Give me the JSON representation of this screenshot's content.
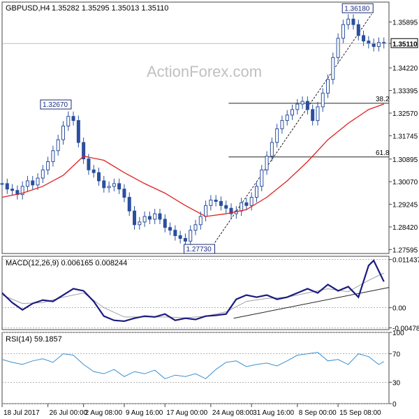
{
  "chart_data": [
    {
      "type": "candlestick",
      "title": "GBPUSD,H4",
      "ohlc": "1.35282 1.35295 1.35013 1.35110",
      "watermark": "ActionForex.com",
      "ylim": [
        1.2745,
        1.3662
      ],
      "y_ticks": [
        "1.35895",
        "1.35110",
        "1.34220",
        "1.33395",
        "1.32570",
        "1.31745",
        "1.30895",
        "1.30070",
        "1.29245",
        "1.28420",
        "1.27595"
      ],
      "y_tick_values": [
        1.35895,
        1.3511,
        1.3422,
        1.33395,
        1.3257,
        1.31745,
        1.30895,
        1.3007,
        1.29245,
        1.2842,
        1.27595
      ],
      "current_price": "1.35110",
      "current_price_value": 1.3511,
      "callouts": [
        {
          "label": "1.32670",
          "value": 1.3267,
          "day": 13.3
        },
        {
          "label": "1.27730",
          "value": 1.2773,
          "day": 41.5
        },
        {
          "label": "1.36180",
          "value": 1.3618,
          "day": 72.6
        }
      ],
      "fibonacci": [
        {
          "label": "38.2",
          "value": 1.3293,
          "from_day": 44.5
        },
        {
          "label": "61.8",
          "value": 1.3097,
          "from_day": 44.5
        }
      ],
      "trend_line": {
        "from": {
          "day": 41.8,
          "value": 1.2785
        },
        "to": {
          "day": 72.6,
          "value": 1.3618
        }
      },
      "series": [
        {
          "name": "price",
          "style": "candles",
          "color": "#2a4f9e",
          "x": [
            0,
            1,
            2,
            3,
            4,
            5,
            6,
            7,
            8,
            9,
            10,
            11,
            12,
            13,
            14,
            15,
            16,
            17,
            18,
            19,
            20,
            21,
            22,
            23,
            24,
            25,
            26,
            27,
            28,
            29,
            30,
            31,
            32,
            33,
            34,
            35,
            36,
            37,
            38,
            39,
            40,
            41,
            42,
            43,
            44,
            45,
            46,
            47,
            48,
            49,
            50,
            51,
            52,
            53,
            54,
            55,
            56,
            57,
            58,
            59,
            60,
            61,
            62,
            63,
            64,
            65,
            66,
            67,
            68,
            69,
            70,
            71,
            72,
            73,
            74,
            75
          ],
          "values": [
            1.3,
            1.298,
            1.2975,
            1.296,
            1.299,
            1.301,
            1.2995,
            1.302,
            1.305,
            1.308,
            1.312,
            1.316,
            1.321,
            1.3245,
            1.323,
            1.315,
            1.309,
            1.305,
            1.304,
            1.301,
            1.2985,
            1.299,
            1.3,
            1.298,
            1.295,
            1.29,
            1.285,
            1.286,
            1.288,
            1.287,
            1.289,
            1.287,
            1.284,
            1.283,
            1.281,
            1.28,
            1.279,
            1.283,
            1.285,
            1.288,
            1.292,
            1.294,
            1.2935,
            1.292,
            1.291,
            1.289,
            1.29,
            1.293,
            1.292,
            1.295,
            1.299,
            1.305,
            1.31,
            1.315,
            1.32,
            1.323,
            1.325,
            1.327,
            1.329,
            1.33,
            1.327,
            1.323,
            1.328,
            1.333,
            1.338,
            1.346,
            1.353,
            1.358,
            1.36,
            1.358,
            1.354,
            1.352,
            1.3511,
            1.35,
            1.3515,
            1.3511
          ]
        },
        {
          "name": "moving-average",
          "style": "line",
          "color": "#e02020",
          "x": [
            0,
            4,
            8,
            12,
            16,
            20,
            24,
            28,
            32,
            36,
            40,
            44,
            48,
            52,
            56,
            60,
            64,
            68,
            72,
            75
          ],
          "values": [
            1.295,
            1.2965,
            1.299,
            1.303,
            1.31,
            1.3085,
            1.304,
            1.3,
            1.2965,
            1.292,
            1.288,
            1.289,
            1.2905,
            1.295,
            1.301,
            1.308,
            1.316,
            1.322,
            1.327,
            1.329
          ]
        }
      ]
    },
    {
      "type": "line",
      "title": "MACD(12,26,9) 0.006165 0.008244",
      "ylim": [
        -0.0052,
        0.0122
      ],
      "y_ticks": [
        "0.011437",
        "0.00",
        "-0.004782"
      ],
      "y_tick_values": [
        0.011437,
        0.0,
        -0.004782
      ],
      "trend_line": {
        "from": {
          "day": 45.5,
          "value": -0.0025
        },
        "to": {
          "day": 76,
          "value": 0.0048
        }
      },
      "series": [
        {
          "name": "macd",
          "color": "#1a1a80",
          "x": [
            0,
            2,
            4,
            6,
            8,
            10,
            12,
            14,
            16,
            18,
            20,
            22,
            24,
            26,
            28,
            30,
            32,
            34,
            36,
            38,
            40,
            42,
            44,
            46,
            48,
            50,
            52,
            54,
            56,
            58,
            60,
            62,
            64,
            66,
            68,
            70,
            72,
            73,
            75
          ],
          "values": [
            0.0035,
            0.0012,
            -0.0005,
            0.001,
            0.0018,
            0.0015,
            0.003,
            0.0045,
            0.004,
            0.0015,
            -0.002,
            -0.003,
            -0.0032,
            -0.0025,
            -0.002,
            -0.0022,
            -0.0015,
            -0.003,
            -0.0025,
            -0.0028,
            -0.002,
            -0.0018,
            -0.0015,
            0.002,
            0.003,
            0.0025,
            0.003,
            0.002,
            0.0025,
            0.0035,
            0.0045,
            0.0035,
            0.0055,
            0.004,
            0.005,
            0.0025,
            0.01,
            0.0112,
            0.0062
          ]
        },
        {
          "name": "signal",
          "color": "#a0a0a0",
          "x": [
            0,
            4,
            8,
            12,
            16,
            20,
            24,
            28,
            32,
            36,
            40,
            44,
            48,
            52,
            56,
            60,
            64,
            68,
            72,
            75
          ],
          "values": [
            0.003,
            0.001,
            0.0012,
            0.0025,
            0.0035,
            0.0,
            -0.0022,
            -0.0022,
            -0.0022,
            -0.0024,
            -0.002,
            -0.001,
            0.0015,
            0.0022,
            0.0025,
            0.0035,
            0.0045,
            0.0038,
            0.0065,
            0.0082
          ]
        }
      ]
    },
    {
      "type": "line",
      "title": "RSI(14) 59.1857",
      "ylim": [
        0,
        100
      ],
      "y_ticks": [
        "100",
        "70",
        "30",
        "0"
      ],
      "y_tick_values": [
        100,
        70,
        30,
        0
      ],
      "x_tick_labels": [
        "18 Jul 2017",
        "26 Jul 00:00",
        "2 Aug 08:00",
        "9 Aug 16:00",
        "17 Aug 00:00",
        "24 Aug 08:00",
        "31 Aug 16:00",
        "8 Sep 00:00",
        "15 Sep 08:00"
      ],
      "x_tick_positions": [
        0,
        9,
        16,
        24,
        32,
        41,
        49,
        58,
        66
      ],
      "series": [
        {
          "name": "rsi",
          "color": "#3a8fd0",
          "x": [
            0,
            2,
            4,
            6,
            8,
            10,
            12,
            14,
            16,
            18,
            20,
            22,
            24,
            26,
            28,
            30,
            32,
            34,
            36,
            38,
            40,
            42,
            44,
            46,
            48,
            50,
            52,
            54,
            56,
            58,
            60,
            62,
            64,
            66,
            68,
            70,
            72,
            74,
            75
          ],
          "values": [
            62,
            58,
            55,
            60,
            63,
            58,
            70,
            68,
            55,
            45,
            42,
            48,
            38,
            45,
            42,
            47,
            35,
            40,
            38,
            42,
            35,
            48,
            58,
            60,
            52,
            55,
            57,
            53,
            60,
            68,
            70,
            72,
            60,
            62,
            55,
            70,
            66,
            55,
            59
          ]
        }
      ]
    }
  ]
}
